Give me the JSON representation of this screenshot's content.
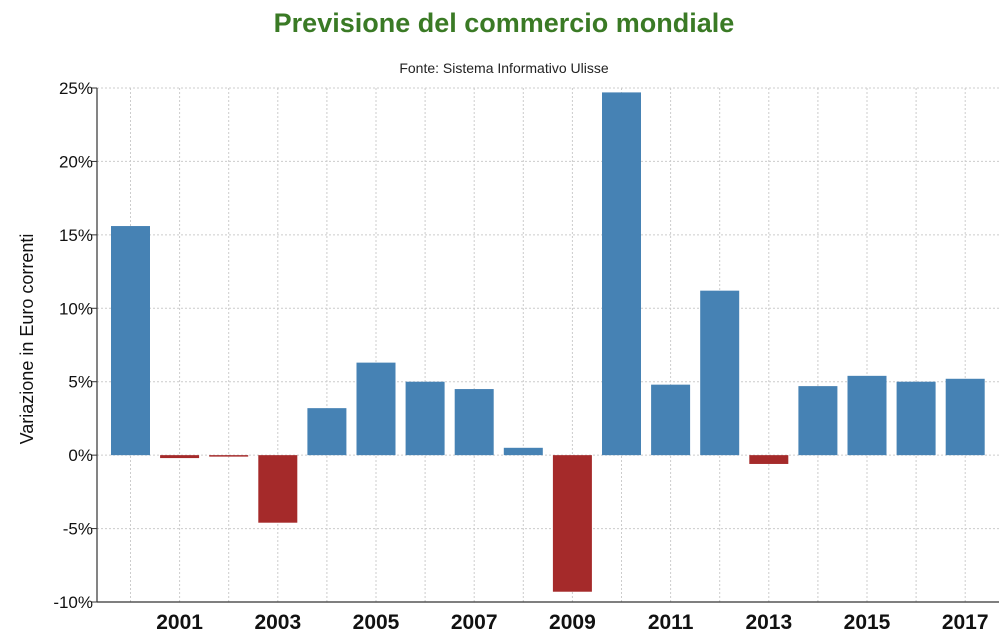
{
  "chart_data": {
    "type": "bar",
    "title": "Previsione del commercio mondiale",
    "subtitle": "Fonte: Sistema Informativo Ulisse",
    "xlabel": "",
    "ylabel": "Variazione in Euro correnti",
    "categories": [
      "2000",
      "2001",
      "2002",
      "2003",
      "2004",
      "2005",
      "2006",
      "2007",
      "2008",
      "2009",
      "2010",
      "2011",
      "2012",
      "2013",
      "2014",
      "2015",
      "2016",
      "2017"
    ],
    "x_tick_labels": [
      "2001",
      "2003",
      "2005",
      "2007",
      "2009",
      "2011",
      "2013",
      "2015",
      "2017"
    ],
    "values": [
      15.6,
      -0.2,
      -0.1,
      -4.6,
      3.2,
      6.3,
      5.0,
      4.5,
      0.5,
      -9.3,
      24.7,
      4.8,
      11.2,
      -0.6,
      4.7,
      5.4,
      5.0,
      5.2
    ],
    "y_ticks": [
      -10,
      -5,
      0,
      5,
      10,
      15,
      20,
      25
    ],
    "y_tick_labels": [
      "-10%",
      "-5%",
      "0%",
      "5%",
      "10%",
      "15%",
      "20%",
      "25%"
    ],
    "ylim": [
      -10,
      25
    ],
    "grid": true,
    "legend": false
  },
  "colors": {
    "title": "#3a7a25",
    "positive": "#4682b4",
    "negative": "#a52a2a",
    "grid": "#cccccc",
    "axis": "#333333"
  }
}
